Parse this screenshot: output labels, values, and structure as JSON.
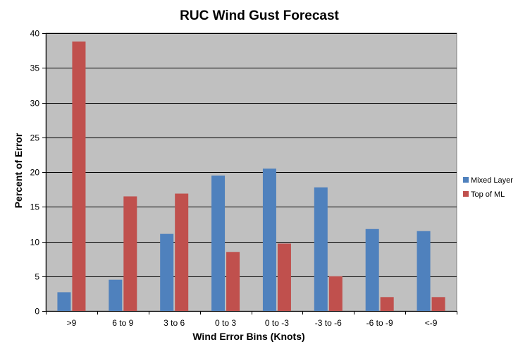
{
  "chart_data": {
    "type": "bar",
    "title": "RUC Wind Gust Forecast",
    "xlabel": "Wind Error Bins (Knots)",
    "ylabel": "Percent of Error",
    "categories": [
      ">9",
      "6 to 9",
      "3 to 6",
      "0 to 3",
      "0 to -3",
      "-3 to -6",
      "-6 to -9",
      "<-9"
    ],
    "series": [
      {
        "name": "Mixed Layer",
        "color": "#4f81bd",
        "values": [
          2.7,
          4.5,
          11.1,
          19.5,
          20.5,
          17.8,
          11.8,
          11.5
        ]
      },
      {
        "name": "Top of ML",
        "color": "#c0504d",
        "values": [
          38.8,
          16.5,
          16.9,
          8.5,
          9.7,
          5.0,
          2.0,
          2.0
        ]
      }
    ],
    "ylim": [
      0,
      40
    ],
    "yticks": [
      0,
      5,
      10,
      15,
      20,
      25,
      30,
      35,
      40
    ],
    "grid": true,
    "plot_background": "#c0c0c0",
    "legend_position": "right"
  }
}
